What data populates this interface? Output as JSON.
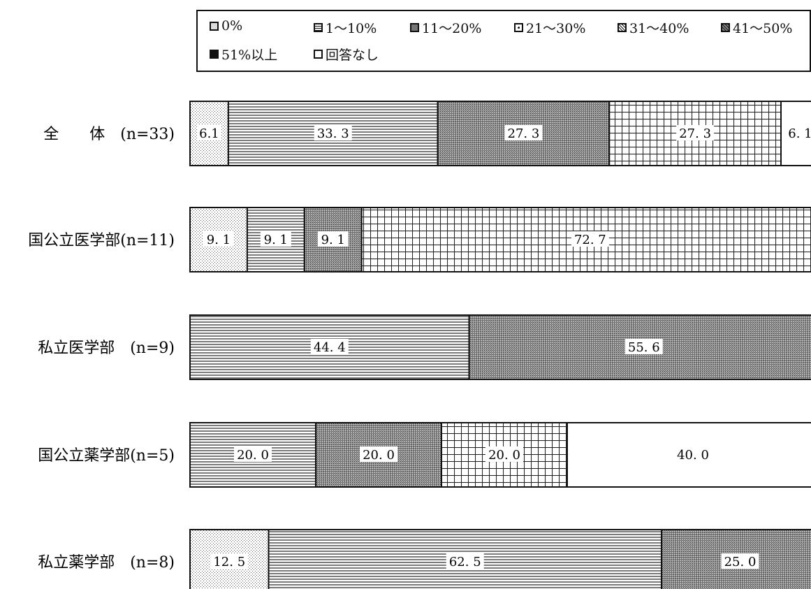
{
  "chart_data": {
    "type": "bar",
    "orientation": "horizontal",
    "stacked": true,
    "categories": [
      "全　　体　(n=33)",
      "国公立医学部(n=11)",
      "私立医学部　(n=9)",
      "国公立薬学部(n=5)",
      "私立薬学部　(n=8)"
    ],
    "series": [
      {
        "name": "0%",
        "pattern": "dots",
        "values": [
          6.1,
          9.1,
          0,
          0,
          12.5
        ],
        "labels": [
          "6.1",
          "9. 1",
          "",
          "",
          "12. 5"
        ]
      },
      {
        "name": "1～10%",
        "pattern": "hlines",
        "values": [
          33.3,
          9.1,
          44.4,
          20.0,
          62.5
        ],
        "labels": [
          "33. 3",
          "9. 1",
          "44. 4",
          "20. 0",
          "62. 5"
        ]
      },
      {
        "name": "11～20%",
        "pattern": "dense",
        "values": [
          27.3,
          9.1,
          55.6,
          20.0,
          25.0
        ],
        "labels": [
          "27. 3",
          "9. 1",
          "55. 6",
          "20. 0",
          "25. 0"
        ]
      },
      {
        "name": "21～30%",
        "pattern": "grid",
        "values": [
          27.3,
          72.7,
          0,
          20.0,
          0
        ],
        "labels": [
          "27. 3",
          "72. 7",
          "",
          "20. 0",
          ""
        ]
      },
      {
        "name": "31～40%",
        "pattern": "diag",
        "values": [
          0,
          0,
          0,
          0,
          0
        ],
        "labels": [
          "",
          "",
          "",
          "",
          ""
        ]
      },
      {
        "name": "41～50%",
        "pattern": "cross",
        "values": [
          0,
          0,
          0,
          0,
          0
        ],
        "labels": [
          "",
          "",
          "",
          "",
          ""
        ]
      },
      {
        "name": "51%以上",
        "pattern": "solid",
        "values": [
          0,
          0,
          0,
          0,
          0
        ],
        "labels": [
          "",
          "",
          "",
          "",
          ""
        ]
      },
      {
        "name": "回答なし",
        "pattern": "white",
        "values": [
          6.1,
          0,
          0,
          40.0,
          0
        ],
        "labels": [
          "6. 1",
          "",
          "",
          "40. 0",
          ""
        ]
      }
    ],
    "xlim": [
      0,
      100
    ],
    "legend_position": "top",
    "grid": false
  }
}
